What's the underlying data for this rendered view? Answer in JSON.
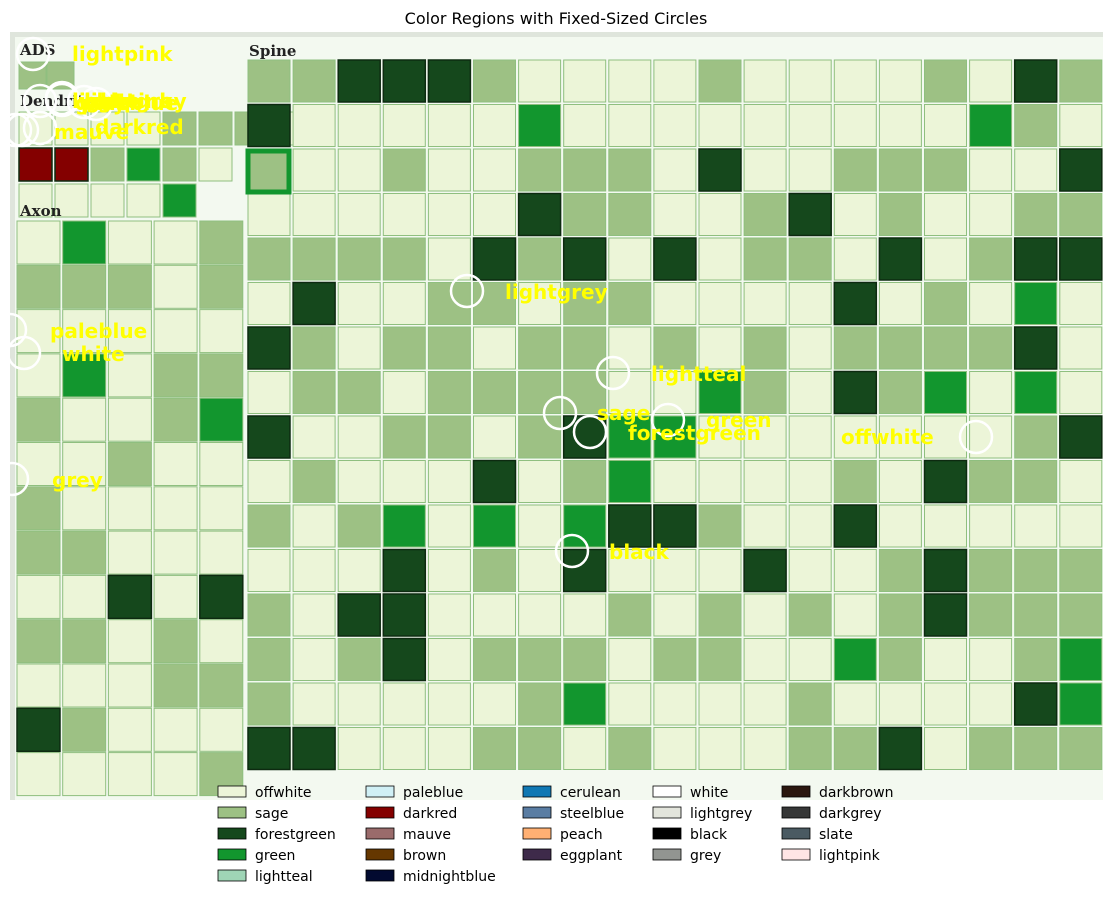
{
  "chart_data": {
    "type": "heatmap",
    "title": "Color Regions with Fixed-Sized Circles",
    "palette": {
      "offwhite": "#ecf5d8",
      "sage": "#9dc184",
      "forestgreen": "#15481c",
      "green": "#12962e",
      "lightteal": "#9fd5b6",
      "paleblue": "#d0f0f5",
      "darkred": "#840000",
      "mauve": "#9a6b6b",
      "brown": "#653700",
      "midnightblue": "#020a30",
      "cerulean": "#0f78b3",
      "steelblue": "#5a7da3",
      "peach": "#ffb073",
      "eggplant": "#3e2a4a",
      "white": "#ffffff",
      "lightgrey": "#e3e5dc",
      "black": "#000000",
      "grey": "#929591",
      "darkbrown": "#2b170f",
      "darkgrey": "#363737",
      "slate": "#4a5a62",
      "lightpink": "#ffe5e5"
    },
    "panels": [
      {
        "label": "ADS",
        "rows": [
          "SS"
        ]
      },
      {
        "label": "Dendrite",
        "rows": [
          "OOOOSSSO",
          "RRSGSO",
          "OOOOG"
        ]
      },
      {
        "label": "Axon",
        "rows": [
          "OGOOS",
          "SSSOS",
          "OOOOO",
          "OGOSS",
          "SOOSG",
          "OOSOO",
          "SOOOO",
          "SSOOO",
          "OOFOF",
          "SSOSO",
          "OOOSS",
          "FSOOO",
          "OOOOS"
        ]
      },
      {
        "label": "Spine",
        "rows": [
          "SSFFFSOOOOSOOOOSOFS",
          "FOOOOOGOOOOOOOOOGSO",
          "SOOSOOSSSOFOOSSSOOF",
          "OOOOOOFSSOOSFOSOOSS",
          "SSSSOFSFOFOSSOFOSFF",
          "OFOOSSOSSOOOOFOSOGO",
          "FSOSSOSSOSOSOSSSSFO",
          "OSSOSSSSOOGSOFSGOGO",
          "FOOSSOSFGGOOOOOOOSF",
          "OSOOOFOSGOOOOSOFSSO",
          "SOSGOGOGFFSOOFOOOOO",
          "OOOFOSOFOOOFOOSFSSS",
          "SOFFOOOOSOSOSOSFSSS",
          "SOSFOSSSOSSOOGSOOSG",
          "SOOOOOSGOOOOSOOOOFG",
          "FFOOOSSOSOOOSSFOSSS"
        ]
      }
    ],
    "annotations": [
      "lightpink",
      "darkred",
      "mauve",
      "paleblue",
      "white",
      "grey",
      "lightgrey",
      "lightteal",
      "sage",
      "green",
      "forestgreen",
      "offwhite",
      "black"
    ],
    "legend": [
      "offwhite",
      "sage",
      "forestgreen",
      "green",
      "lightteal",
      "paleblue",
      "darkred",
      "mauve",
      "brown",
      "midnightblue",
      "cerulean",
      "steelblue",
      "peach",
      "eggplant",
      "white",
      "lightgrey",
      "black",
      "grey",
      "darkbrown",
      "darkgrey",
      "slate",
      "lightpink"
    ],
    "legend_placement": "bottom",
    "grid": false
  }
}
